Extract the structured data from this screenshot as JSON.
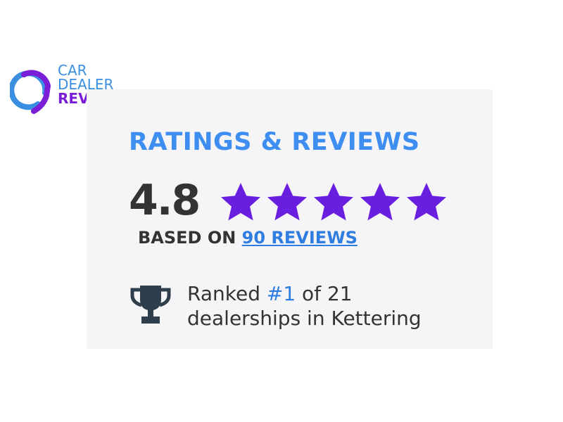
{
  "logo": {
    "line1": "CAR",
    "line2": "DEALER",
    "line3": "REVIEWS"
  },
  "widget": {
    "title": "RATINGS & REVIEWS",
    "score": "4.8",
    "stars": 5,
    "based_prefix": "BASED ON ",
    "reviews_link": "90 REVIEWS",
    "rank_prefix": "Ranked ",
    "rank_value": "#1",
    "rank_suffix": " of 21",
    "rank_line2": "dealerships in Kettering"
  },
  "colors": {
    "blue": "#3d8ef0",
    "purple": "#6a1fe0",
    "dark": "#333333",
    "card_bg": "#f5f5f8"
  }
}
